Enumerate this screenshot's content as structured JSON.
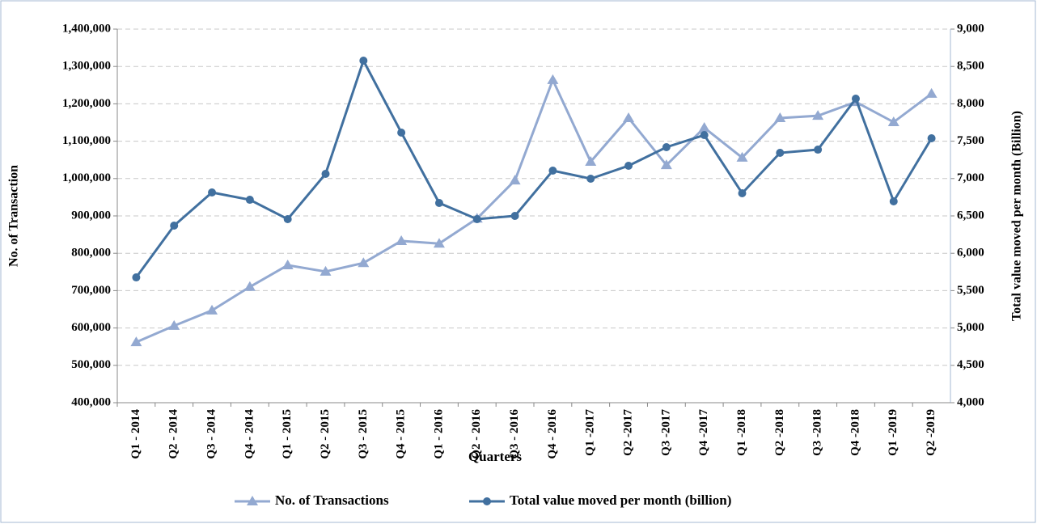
{
  "chart_data": {
    "type": "line",
    "x_label": "Quarters",
    "y_label": "No. of Transaction",
    "y2_label": "Total value moved  per month (Billion)",
    "categories": [
      "Q1 - 2014",
      "Q2 - 2014",
      "Q3 - 2014",
      "Q4 - 2014",
      "Q1 - 2015",
      "Q2 - 2015",
      "Q3 - 2015",
      "Q4 - 2015",
      "Q1 - 2016",
      "Q2 - 2016",
      "Q3 - 2016",
      "Q4 - 2016",
      "Q1 -2017",
      "Q2 -2017",
      "Q3 -2017",
      "Q4 -2017",
      "Q1 -2018",
      "Q2 -2018",
      "Q3 -2018",
      "Q4 -2018",
      "Q1 -2019",
      "Q2 -2019"
    ],
    "series": [
      {
        "name": "No. of Transactions",
        "color": "#93a9d1",
        "marker": "triangle",
        "values": [
          562000,
          606000,
          647000,
          710000,
          768000,
          751000,
          774000,
          833000,
          826000,
          893000,
          995000,
          1264000,
          1045000,
          1162000,
          1036000,
          1136000,
          1056000,
          1162000,
          1168000,
          1205000,
          1151000,
          1227000
        ]
      },
      {
        "name": "Total value moved per month (billion)",
        "color": "#41709f",
        "marker": "circle",
        "axis": "y2",
        "values": [
          5677,
          6370,
          6814,
          6716,
          6457,
          7063,
          8578,
          7615,
          6673,
          6457,
          6500,
          7106,
          6998,
          7171,
          7420,
          7582,
          6803,
          7344,
          7387,
          8069,
          6695,
          7539
        ]
      }
    ],
    "ylim": [
      400000,
      1400000
    ],
    "yticks": [
      {
        "value": 400000,
        "label": "400,000"
      },
      {
        "value": 500000,
        "label": "500,000"
      },
      {
        "value": 600000,
        "label": "600,000"
      },
      {
        "value": 700000,
        "label": "700,000"
      },
      {
        "value": 800000,
        "label": "800,000"
      },
      {
        "value": 900000,
        "label": "900,000"
      },
      {
        "value": 1000000,
        "label": "1,000,000"
      },
      {
        "value": 1100000,
        "label": "1,100,000"
      },
      {
        "value": 1200000,
        "label": "1,200,000"
      },
      {
        "value": 1300000,
        "label": "1,300,000"
      },
      {
        "value": 1400000,
        "label": "1,400,000"
      }
    ],
    "y2lim": [
      4000,
      9000
    ],
    "y2ticks": [
      {
        "value": 4000,
        "label": "4,000"
      },
      {
        "value": 4500,
        "label": "4,500"
      },
      {
        "value": 5000,
        "label": "5,000"
      },
      {
        "value": 5500,
        "label": "5,500"
      },
      {
        "value": 6000,
        "label": "6,000"
      },
      {
        "value": 6500,
        "label": "6,500"
      },
      {
        "value": 7000,
        "label": "7,000"
      },
      {
        "value": 7500,
        "label": "7,500"
      },
      {
        "value": 8000,
        "label": "8,000"
      },
      {
        "value": 8500,
        "label": "8,500"
      },
      {
        "value": 9000,
        "label": "9,000"
      }
    ],
    "grid": true,
    "legend": "bottom"
  }
}
